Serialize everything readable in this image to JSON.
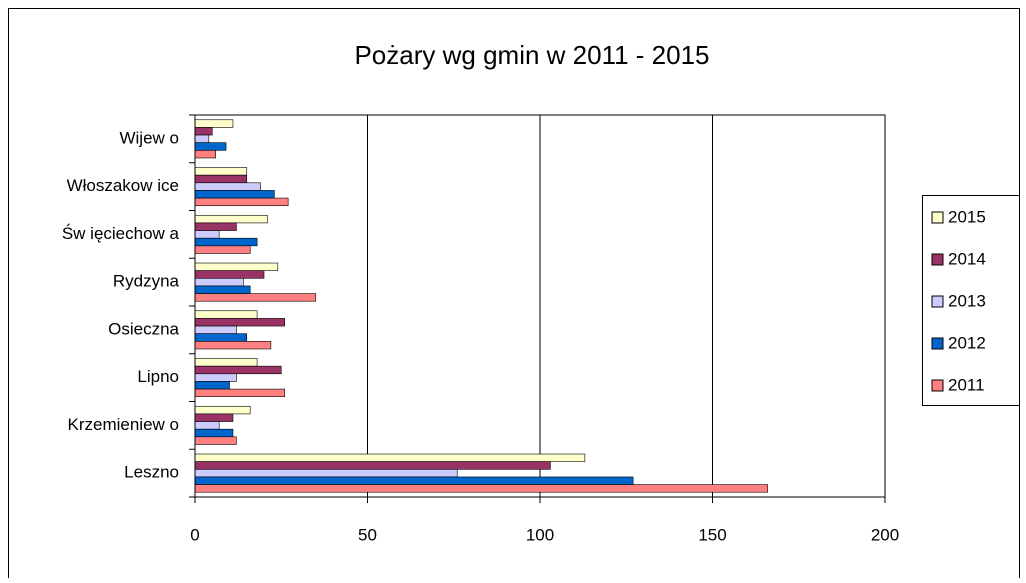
{
  "chart_data": {
    "type": "bar",
    "orientation": "horizontal",
    "title": "Pożary wg gmin w 2011 - 2015",
    "categories": [
      "Leszno",
      "Krzemieniew o",
      "Lipno",
      "Osieczna",
      "Rydzyna",
      "Św ięciechow a",
      "Włoszakow ice",
      "Wijew o"
    ],
    "series": [
      {
        "name": "2015",
        "color": "#ffffcc",
        "values": [
          113,
          16,
          18,
          18,
          24,
          21,
          15,
          11
        ]
      },
      {
        "name": "2014",
        "color": "#993366",
        "values": [
          103,
          11,
          25,
          26,
          20,
          12,
          15,
          5
        ]
      },
      {
        "name": "2013",
        "color": "#ccccff",
        "values": [
          76,
          7,
          12,
          12,
          14,
          7,
          19,
          4
        ]
      },
      {
        "name": "2012",
        "color": "#0066cc",
        "values": [
          127,
          11,
          10,
          15,
          16,
          18,
          23,
          9
        ]
      },
      {
        "name": "2011",
        "color": "#ff8080",
        "values": [
          166,
          12,
          26,
          22,
          35,
          16,
          27,
          6
        ]
      }
    ],
    "xlim": [
      0,
      200
    ],
    "xticks": [
      0,
      50,
      100,
      150,
      200
    ],
    "grid": true,
    "legend": "right"
  }
}
